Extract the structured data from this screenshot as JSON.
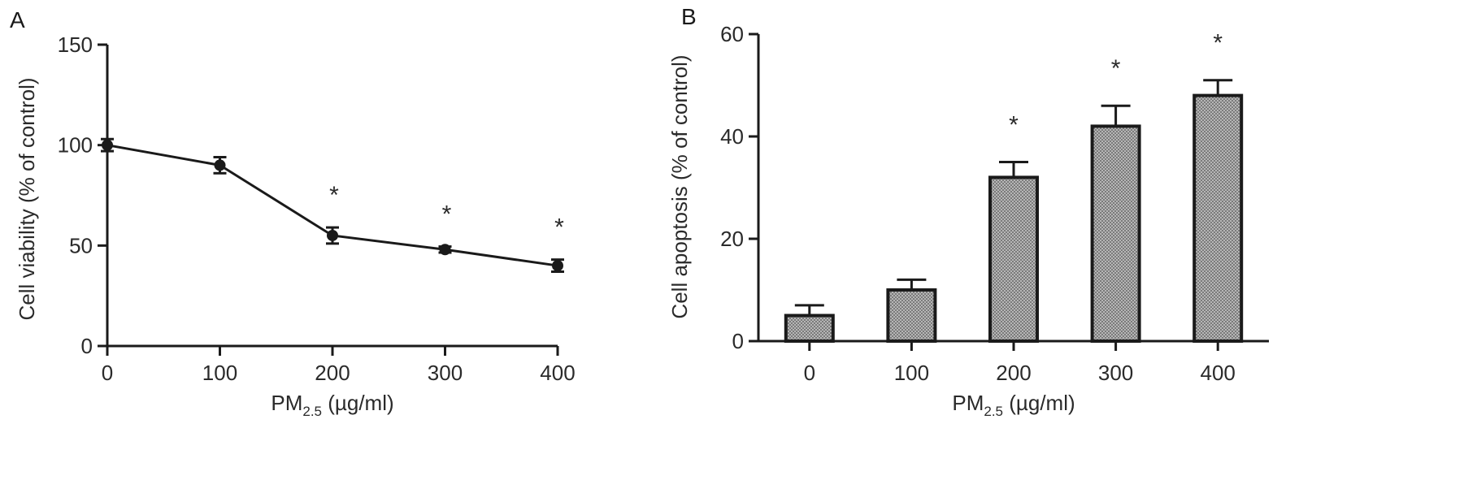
{
  "chart_data": [
    {
      "panel_label": "A",
      "type": "line",
      "x": [
        0,
        100,
        200,
        300,
        400
      ],
      "y": [
        100,
        90,
        55,
        48,
        40
      ],
      "error": [
        3,
        4,
        4,
        1.5,
        3
      ],
      "significance": [
        "",
        "",
        "*",
        "*",
        "*"
      ],
      "xlabel": "PM2.5 (µg/ml)",
      "xlabel_main": "PM",
      "xlabel_sub": "2.5",
      "xlabel_unit": " (µg/ml)",
      "ylabel": "Cell viability (% of control)",
      "xlim": [
        0,
        400
      ],
      "ylim": [
        0,
        150
      ],
      "xticks": [
        0,
        100,
        200,
        300,
        400
      ],
      "yticks": [
        0,
        50,
        100,
        150
      ],
      "grid": false
    },
    {
      "panel_label": "B",
      "type": "bar",
      "categories": [
        "0",
        "100",
        "200",
        "300",
        "400"
      ],
      "values": [
        5,
        10,
        32,
        42,
        48
      ],
      "error": [
        2,
        2,
        3,
        4,
        3
      ],
      "significance": [
        "",
        "",
        "*",
        "*",
        "*"
      ],
      "xlabel": "PM2.5 (µg/ml)",
      "xlabel_main": "PM",
      "xlabel_sub": "2.5",
      "xlabel_unit": " (µg/ml)",
      "ylabel": "Cell apoptosis (% of control)",
      "ylim": [
        0,
        60
      ],
      "yticks": [
        0,
        20,
        40,
        60
      ],
      "grid": false,
      "bar_pattern": "crosshatch"
    }
  ]
}
